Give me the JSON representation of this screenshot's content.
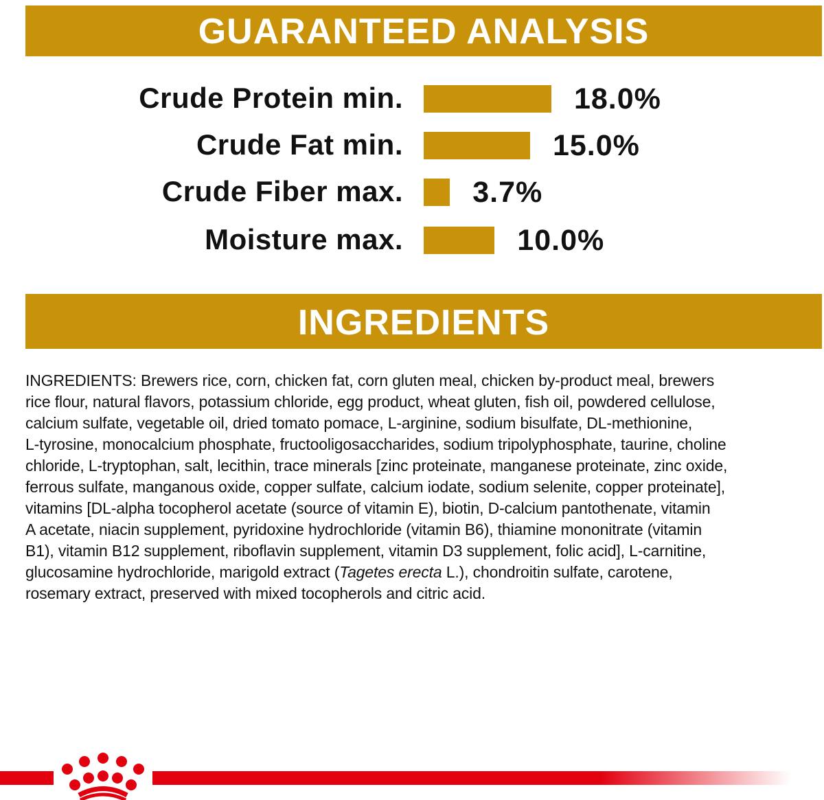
{
  "analysis": {
    "title": "GUARANTEED ANALYSIS",
    "bar_color": "#C8930A"
  },
  "chart_data": {
    "type": "bar",
    "orientation": "horizontal",
    "title": "GUARANTEED ANALYSIS",
    "categories": [
      "Crude Protein min.",
      "Crude Fat min.",
      "Crude Fiber max.",
      "Moisture max."
    ],
    "values": [
      18.0,
      15.0,
      3.7,
      10.0
    ],
    "value_labels": [
      "18.0%",
      "15.0%",
      "3.7%",
      "10.0%"
    ],
    "unit": "%",
    "grid": false,
    "axes_visible": false
  },
  "ingredients": {
    "title": "INGREDIENTS",
    "lines": [
      "INGREDIENTS: Brewers rice, corn, chicken fat, corn gluten meal, chicken by-product meal, brewers",
      "rice flour, natural flavors, potassium chloride, egg product, wheat gluten, fish oil, powdered cellulose,",
      "calcium sulfate, vegetable oil, dried tomato pomace, L-arginine, sodium bisulfate, DL-methionine,",
      "L-tyrosine, monocalcium phosphate, fructooligosaccharides, sodium tripolyphosphate, taurine, choline",
      "chloride, L-tryptophan, salt, lecithin, trace minerals [zinc proteinate, manganese proteinate, zinc oxide,",
      "ferrous sulfate, manganous oxide, copper sulfate, calcium iodate, sodium selenite, copper proteinate],",
      "vitamins [DL-alpha tocopherol acetate (source of vitamin E), biotin, D-calcium pantothenate, vitamin",
      "A acetate, niacin supplement, pyridoxine hydrochloride (vitamin B6), thiamine mononitrate (vitamin",
      "B1), vitamin B12 supplement, riboflavin supplement, vitamin D3 supplement, folic acid], L-carnitine,"
    ],
    "line10_pre": "glucosamine hydrochloride, marigold extract (",
    "line10_italic": "Tagetes erecta",
    "line10_post": " L.), chondroitin sulfate, carotene,",
    "line11": "rosemary extract, preserved with mixed tocopherols and citric acid."
  },
  "footer": {
    "logo": "royal-canin-crown-logo",
    "brand_color": "#E2000F"
  }
}
